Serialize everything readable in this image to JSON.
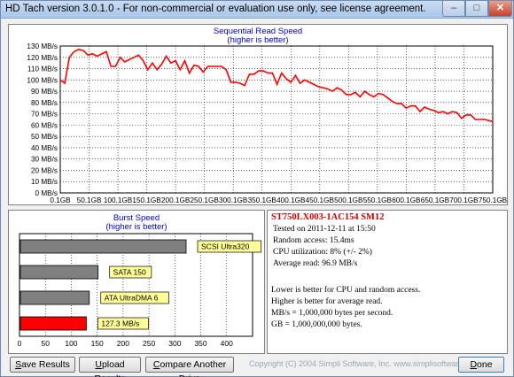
{
  "window": {
    "title": "HD Tach version 3.0.1.0  - For non-commercial or evaluation use only, see license agreement.",
    "min_glyph": "–",
    "max_glyph": "□",
    "close_glyph": "✕"
  },
  "read_chart": {
    "title_line1": "Sequential Read Speed",
    "title_line2": "(higher is better)"
  },
  "burst_chart": {
    "title_line1": "Burst Speed",
    "title_line2": "(higher is better)"
  },
  "chart_data": [
    {
      "type": "line",
      "title": "Sequential Read Speed",
      "subtitle": "(higher is better)",
      "ylim": [
        0,
        130
      ],
      "yticks": [
        0,
        10,
        20,
        30,
        40,
        50,
        60,
        70,
        80,
        90,
        100,
        110,
        120,
        130
      ],
      "ytick_labels": [
        "0 MB/s",
        "10 MB/s",
        "20 MB/s",
        "30 MB/s",
        "40 MB/s",
        "50 MB/s",
        "60 MB/s",
        "70 MB/s",
        "80 MB/s",
        "90 MB/s",
        "100 MB/s",
        "110 MB/s",
        "120 MB/s",
        "130 MB/s"
      ],
      "xlim": [
        0.1,
        750.1
      ],
      "xticks": [
        0.1,
        50.1,
        100.1,
        150.1,
        200.1,
        250.1,
        300.1,
        350.1,
        400.1,
        450.1,
        500.1,
        550.1,
        600.1,
        650.1,
        700.1,
        750.1
      ],
      "xtick_labels": [
        "0.1GB",
        "50.1GB",
        "100.1GB",
        "150.1GB",
        "200.1GB",
        "250.1GB",
        "300.1GB",
        "350.1GB",
        "400.1GB",
        "450.1GB",
        "500.1GB",
        "550.1GB",
        "600.1GB",
        "650.1GB",
        "700.1GB",
        "750.1GB"
      ],
      "grid": true,
      "line_color": "#ff0000",
      "x": [
        0.1,
        8,
        16,
        24,
        32,
        40,
        48,
        56,
        64,
        72,
        80,
        88,
        96,
        104,
        112,
        120,
        128,
        136,
        144,
        152,
        160,
        168,
        176,
        184,
        192,
        200,
        208,
        216,
        224,
        232,
        240,
        248,
        256,
        264,
        272,
        280,
        288,
        296,
        304,
        312,
        320,
        328,
        336,
        344,
        352,
        360,
        368,
        376,
        384,
        392,
        400,
        408,
        416,
        424,
        432,
        440,
        448,
        456,
        464,
        472,
        480,
        488,
        496,
        504,
        512,
        520,
        528,
        536,
        544,
        552,
        560,
        568,
        576,
        584,
        592,
        600,
        608,
        616,
        624,
        632,
        640,
        648,
        656,
        664,
        672,
        680,
        688,
        696,
        704,
        712,
        720,
        728,
        736,
        744,
        750.1
      ],
      "y": [
        100,
        97,
        120,
        125,
        127,
        126,
        122,
        123,
        121,
        123,
        125,
        112,
        112,
        120,
        116,
        118,
        120,
        122,
        117,
        109,
        115,
        109,
        114,
        121,
        115,
        117,
        109,
        117,
        106,
        113,
        112,
        107,
        112,
        112,
        112,
        112,
        109,
        98,
        98,
        97,
        95,
        105,
        105,
        108,
        108,
        106,
        106,
        96,
        106,
        101,
        98,
        104,
        97,
        100,
        98,
        96,
        94,
        93,
        92,
        90,
        93,
        91,
        87,
        87,
        89,
        85,
        90,
        87,
        85,
        88,
        87,
        84,
        81,
        79,
        79,
        75,
        77,
        77,
        72,
        76,
        74,
        73,
        71,
        72,
        70,
        72,
        71,
        66,
        69,
        69,
        65,
        65,
        65,
        64,
        63
      ]
    },
    {
      "type": "bar",
      "orientation": "horizontal",
      "title": "Burst Speed",
      "subtitle": "(higher is better)",
      "xlim": [
        0,
        450
      ],
      "xticks": [
        0,
        50,
        100,
        150,
        200,
        250,
        300,
        350,
        400
      ],
      "grid": true,
      "categories": [
        "SCSI Ultra320",
        "SATA 150",
        "ATA UltraDMA 6",
        "127.3 MB/s"
      ],
      "values": [
        320,
        150,
        133,
        127.3
      ],
      "colors": [
        "#808080",
        "#808080",
        "#808080",
        "#ff0000"
      ]
    }
  ],
  "drive_info": {
    "name": "ST750LX003-1AC154 SM12",
    "tested_on": "Tested on 2011-12-11 at 15:50",
    "random_access": "Random access: 15.4ms",
    "cpu_utilization": "CPU utilization: 8% (+/- 2%)",
    "average_read": "Average read: 96.9 MB/s"
  },
  "notes": [
    "Lower is better for CPU and random access.",
    "Higher is better for average read.",
    "MB/s = 1,000,000 bytes per second.",
    "GB = 1,000,000,000 bytes."
  ],
  "buttons": {
    "save_ul": "S",
    "save_rest": "ave Results",
    "upload_ul": "U",
    "upload_rest": "pload Results",
    "compare_ul": "C",
    "compare_rest": "ompare Another Drive",
    "done_ul": "D",
    "done_rest": "one"
  },
  "copyright": "Copyright (C) 2004 Simpli Software, Inc. www.simplisoftware.com"
}
